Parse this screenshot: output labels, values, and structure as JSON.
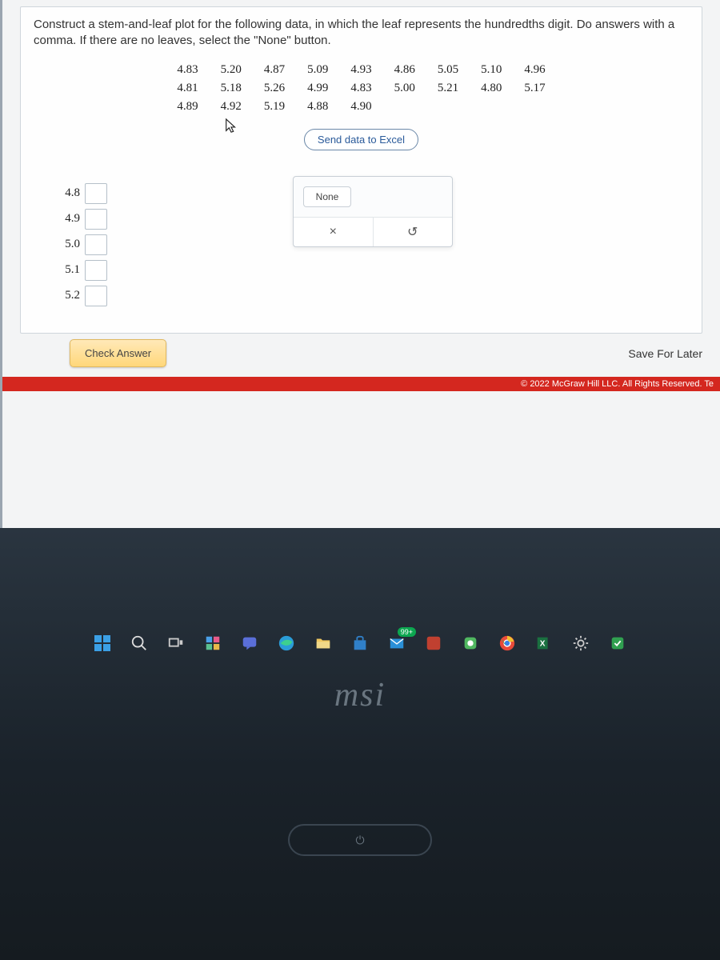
{
  "question": "Construct a stem-and-leaf plot for the following data, in which the leaf represents the hundredths digit. Do answers with a comma. If there are no leaves, select the \"None\" button.",
  "data_table": {
    "rows": [
      [
        "4.83",
        "5.20",
        "4.87",
        "5.09",
        "4.93",
        "4.86",
        "5.05",
        "5.10",
        "4.96"
      ],
      [
        "4.81",
        "5.18",
        "5.26",
        "4.99",
        "4.83",
        "5.00",
        "5.21",
        "4.80",
        "5.17"
      ],
      [
        "4.89",
        "4.92",
        "5.19",
        "4.88",
        "4.90",
        "",
        "",
        "",
        ""
      ]
    ]
  },
  "send_button": "Send data to Excel",
  "stems": [
    "4.8",
    "4.9",
    "5.0",
    "5.1",
    "5.2"
  ],
  "popup": {
    "none_label": "None",
    "clear_symbol": "×",
    "reset_symbol": "↺"
  },
  "check_answer": "Check Answer",
  "save_later": "Save For Later",
  "copyright": "© 2022 McGraw Hill LLC. All Rights Reserved.   Te",
  "taskbar": {
    "badge": "99+"
  },
  "laptop_brand": "msi"
}
